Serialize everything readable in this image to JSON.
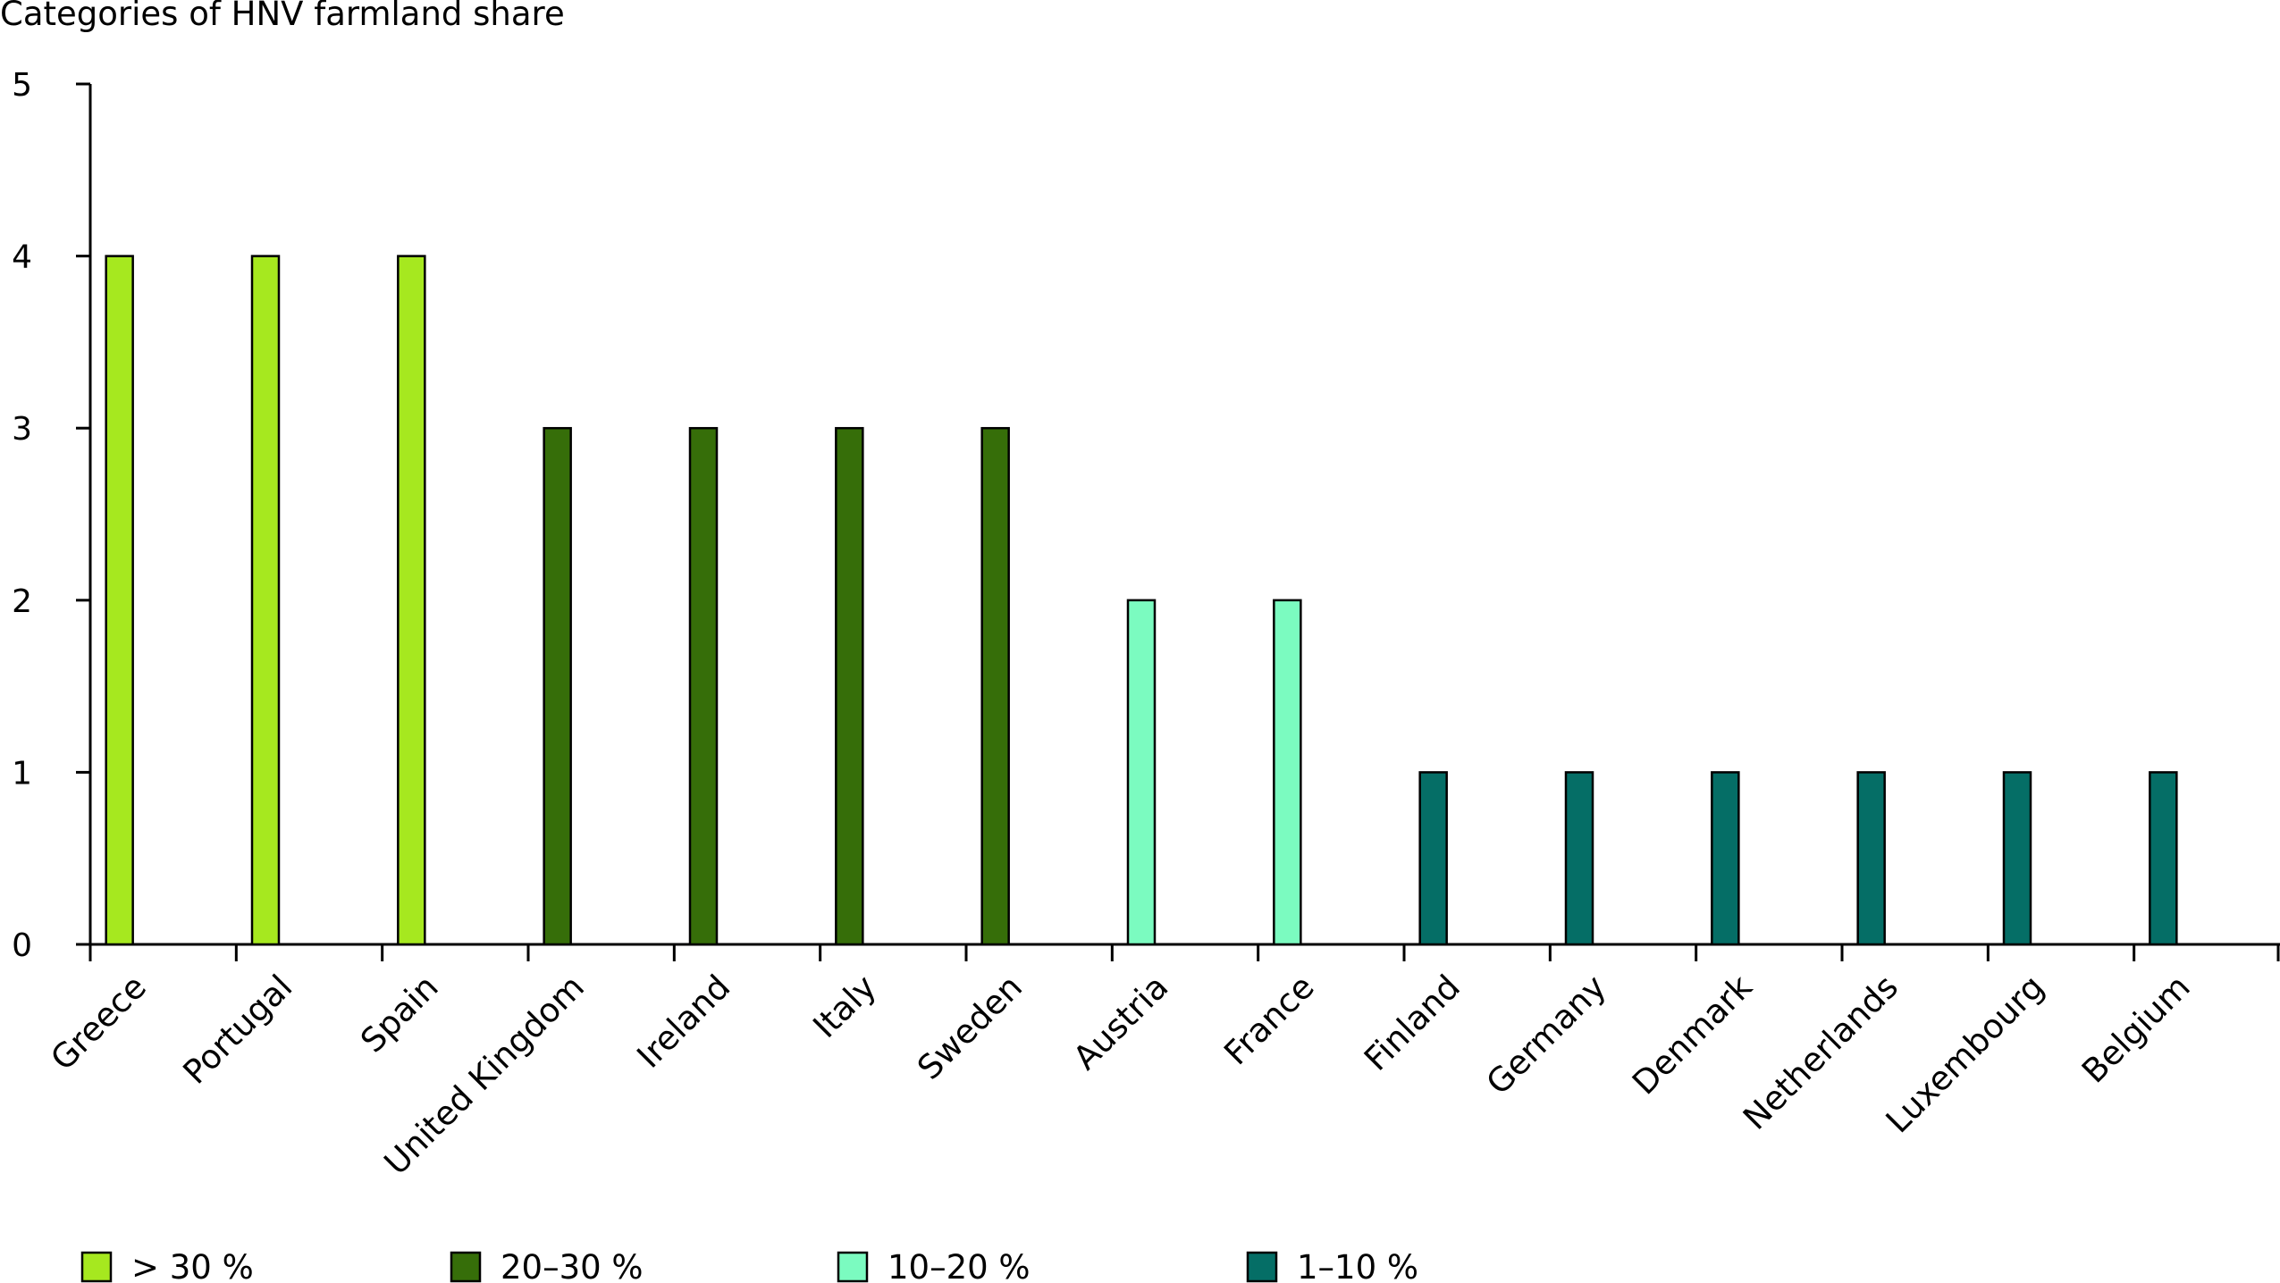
{
  "chart_data": {
    "type": "bar",
    "title": "",
    "ylabel": "Categories of HNV farmland share",
    "xlabel": "",
    "ylim": [
      0,
      5
    ],
    "yticks": [
      0,
      1,
      2,
      3,
      4,
      5
    ],
    "grid": false,
    "legend_position": "bottom",
    "categories": [
      "Greece",
      "Portugal",
      "Spain",
      "United Kingdom",
      "Ireland",
      "Italy",
      "Sweden",
      "Austria",
      "France",
      "Finland",
      "Germany",
      "Denmark",
      "Netherlands",
      "Luxembourg",
      "Belgium"
    ],
    "values": [
      4,
      4,
      4,
      3,
      3,
      3,
      3,
      2,
      2,
      1,
      1,
      1,
      1,
      1,
      1
    ],
    "legend": [
      {
        "label": "> 30 %",
        "color": "#a6e81f",
        "value": 4
      },
      {
        "label": "20–30 %",
        "color": "#366e09",
        "value": 3
      },
      {
        "label": "10–20 %",
        "color": "#7bfbc0",
        "value": 2
      },
      {
        "label": "1–10 %",
        "color": "#056e66",
        "value": 1
      }
    ]
  }
}
